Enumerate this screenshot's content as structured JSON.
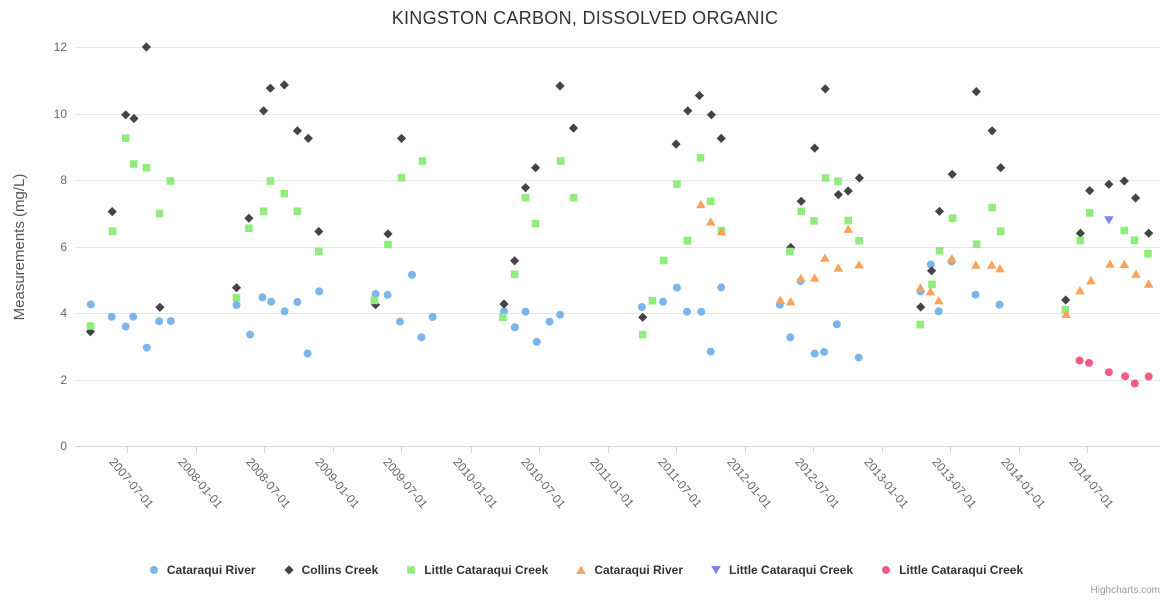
{
  "credits": {
    "label": "Highcharts.com"
  },
  "chart_data": {
    "type": "scatter",
    "title": "KINGSTON CARBON, DISSOLVED ORGANIC",
    "xlabel": "",
    "ylabel": "Measurements (mg/L)",
    "ylim": [
      0,
      12
    ],
    "y_ticks": [
      0,
      2,
      4,
      6,
      8,
      10,
      12
    ],
    "x_range": [
      "2007-02-13",
      "2015-01-10"
    ],
    "x_ticks": [
      "2007-07-01",
      "2008-01-01",
      "2008-07-01",
      "2009-01-01",
      "2009-07-01",
      "2010-01-01",
      "2010-07-01",
      "2011-01-01",
      "2011-07-01",
      "2012-01-01",
      "2012-07-01",
      "2013-01-01",
      "2013-07-01",
      "2014-01-01",
      "2014-07-01"
    ],
    "grid": true,
    "legend_position": "bottom",
    "colors": {
      "grid": "#e6e6e6",
      "axis_line": "#ccd6eb",
      "tick_label": "#666666",
      "title_text": "#333333"
    },
    "series": [
      {
        "name": "Cataraqui River",
        "marker": "circle",
        "color": "#7cb5ec",
        "points": [
          [
            "2007-03-27",
            4.26
          ],
          [
            "2007-05-22",
            3.89
          ],
          [
            "2007-06-28",
            3.59
          ],
          [
            "2007-07-18",
            3.89
          ],
          [
            "2007-08-23",
            2.96
          ],
          [
            "2007-09-25",
            3.75
          ],
          [
            "2007-10-26",
            3.76
          ],
          [
            "2008-04-18",
            4.24
          ],
          [
            "2008-05-24",
            3.35
          ],
          [
            "2008-06-26",
            4.47
          ],
          [
            "2008-07-19",
            4.34
          ],
          [
            "2008-08-24",
            4.05
          ],
          [
            "2008-09-27",
            4.33
          ],
          [
            "2008-10-24",
            2.78
          ],
          [
            "2008-11-24",
            4.65
          ],
          [
            "2009-04-23",
            4.57
          ],
          [
            "2009-05-25",
            4.55
          ],
          [
            "2009-06-27",
            3.74
          ],
          [
            "2009-07-29",
            5.15
          ],
          [
            "2009-08-23",
            3.27
          ],
          [
            "2009-09-22",
            3.88
          ],
          [
            "2010-03-31",
            4.05
          ],
          [
            "2010-04-29",
            3.57
          ],
          [
            "2010-05-27",
            4.04
          ],
          [
            "2010-06-26",
            3.13
          ],
          [
            "2010-07-30",
            3.74
          ],
          [
            "2010-08-27",
            3.95
          ],
          [
            "2011-04-02",
            4.18
          ],
          [
            "2011-05-28",
            4.34
          ],
          [
            "2011-07-04",
            4.76
          ],
          [
            "2011-07-31",
            4.04
          ],
          [
            "2011-09-07",
            4.04
          ],
          [
            "2011-10-02",
            2.84
          ],
          [
            "2011-10-30",
            4.77
          ],
          [
            "2012-04-03",
            4.25
          ],
          [
            "2012-05-01",
            3.27
          ],
          [
            "2012-05-28",
            4.96
          ],
          [
            "2012-07-05",
            2.78
          ],
          [
            "2012-07-30",
            2.83
          ],
          [
            "2012-09-02",
            3.66
          ],
          [
            "2012-10-30",
            2.66
          ],
          [
            "2013-04-13",
            4.65
          ],
          [
            "2013-05-10",
            5.46
          ],
          [
            "2013-05-31",
            4.05
          ],
          [
            "2013-07-04",
            5.55
          ],
          [
            "2013-09-06",
            4.55
          ],
          [
            "2013-11-09",
            4.25
          ]
        ]
      },
      {
        "name": "Collins Creek",
        "marker": "diamond",
        "color": "#434348",
        "points": [
          [
            "2007-03-26",
            3.44
          ],
          [
            "2007-05-23",
            7.05
          ],
          [
            "2007-06-28",
            9.96
          ],
          [
            "2007-07-20",
            9.85
          ],
          [
            "2007-08-22",
            12.0
          ],
          [
            "2007-09-27",
            4.17
          ],
          [
            "2008-04-18",
            4.76
          ],
          [
            "2008-05-21",
            6.85
          ],
          [
            "2008-06-29",
            10.08
          ],
          [
            "2008-07-17",
            10.76
          ],
          [
            "2008-08-23",
            10.86
          ],
          [
            "2008-09-27",
            9.48
          ],
          [
            "2008-10-26",
            9.25
          ],
          [
            "2008-11-23",
            6.45
          ],
          [
            "2009-04-23",
            4.25
          ],
          [
            "2009-05-26",
            6.38
          ],
          [
            "2009-07-01",
            9.25
          ],
          [
            "2010-03-31",
            4.27
          ],
          [
            "2010-04-28",
            5.57
          ],
          [
            "2010-05-27",
            7.77
          ],
          [
            "2010-06-23",
            8.37
          ],
          [
            "2010-08-27",
            10.83
          ],
          [
            "2010-10-02",
            9.56
          ],
          [
            "2011-04-04",
            3.87
          ],
          [
            "2011-07-02",
            9.08
          ],
          [
            "2011-08-02",
            10.08
          ],
          [
            "2011-09-02",
            10.54
          ],
          [
            "2011-10-04",
            9.96
          ],
          [
            "2011-10-30",
            9.25
          ],
          [
            "2012-05-02",
            5.97
          ],
          [
            "2012-05-30",
            7.36
          ],
          [
            "2012-07-05",
            8.96
          ],
          [
            "2012-08-02",
            10.74
          ],
          [
            "2012-09-06",
            7.56
          ],
          [
            "2012-10-02",
            7.67
          ],
          [
            "2012-11-01",
            8.06
          ],
          [
            "2013-04-13",
            4.18
          ],
          [
            "2013-05-12",
            5.27
          ],
          [
            "2013-06-02",
            7.06
          ],
          [
            "2013-07-06",
            8.17
          ],
          [
            "2013-09-08",
            10.66
          ],
          [
            "2013-10-20",
            9.48
          ],
          [
            "2013-11-12",
            8.37
          ],
          [
            "2014-05-04",
            4.39
          ],
          [
            "2014-06-12",
            6.4
          ],
          [
            "2014-07-07",
            7.68
          ],
          [
            "2014-08-27",
            7.87
          ],
          [
            "2014-10-07",
            7.97
          ],
          [
            "2014-11-06",
            7.46
          ],
          [
            "2014-12-11",
            6.4
          ]
        ]
      },
      {
        "name": "Little Cataraqui Creek",
        "marker": "square",
        "color": "#90ed7d",
        "points": [
          [
            "2007-03-26",
            3.61
          ],
          [
            "2007-05-24",
            6.46
          ],
          [
            "2007-06-28",
            9.26
          ],
          [
            "2007-07-19",
            8.48
          ],
          [
            "2007-08-22",
            8.37
          ],
          [
            "2007-09-26",
            6.99
          ],
          [
            "2007-10-25",
            7.97
          ],
          [
            "2008-04-18",
            4.46
          ],
          [
            "2008-05-21",
            6.55
          ],
          [
            "2008-06-29",
            7.06
          ],
          [
            "2008-07-17",
            7.97
          ],
          [
            "2008-08-23",
            7.59
          ],
          [
            "2008-09-27",
            7.06
          ],
          [
            "2008-11-23",
            5.85
          ],
          [
            "2009-04-20",
            4.38
          ],
          [
            "2009-05-26",
            6.06
          ],
          [
            "2009-07-01",
            8.07
          ],
          [
            "2009-08-26",
            8.57
          ],
          [
            "2010-03-28",
            3.87
          ],
          [
            "2010-04-28",
            5.16
          ],
          [
            "2010-05-27",
            7.47
          ],
          [
            "2010-06-23",
            6.69
          ],
          [
            "2010-08-29",
            8.57
          ],
          [
            "2010-10-02",
            7.47
          ],
          [
            "2011-04-04",
            3.35
          ],
          [
            "2011-04-30",
            4.37
          ],
          [
            "2011-05-30",
            5.58
          ],
          [
            "2011-07-04",
            7.87
          ],
          [
            "2011-08-01",
            6.17
          ],
          [
            "2011-09-05",
            8.67
          ],
          [
            "2011-10-02",
            7.36
          ],
          [
            "2011-10-31",
            6.48
          ],
          [
            "2012-04-30",
            5.85
          ],
          [
            "2012-05-30",
            7.06
          ],
          [
            "2012-07-03",
            6.77
          ],
          [
            "2012-08-03",
            8.06
          ],
          [
            "2012-09-05",
            7.96
          ],
          [
            "2012-10-02",
            6.78
          ],
          [
            "2012-10-31",
            6.17
          ],
          [
            "2013-04-12",
            3.65
          ],
          [
            "2013-05-13",
            4.86
          ],
          [
            "2013-06-02",
            5.87
          ],
          [
            "2013-07-07",
            6.85
          ],
          [
            "2013-09-09",
            6.07
          ],
          [
            "2013-10-20",
            7.17
          ],
          [
            "2013-11-12",
            6.46
          ],
          [
            "2014-05-03",
            4.1
          ],
          [
            "2014-06-12",
            6.18
          ],
          [
            "2014-07-07",
            7.01
          ],
          [
            "2014-10-07",
            6.48
          ],
          [
            "2014-11-03",
            6.19
          ],
          [
            "2014-12-09",
            5.78
          ]
        ]
      },
      {
        "name": "Cataraqui River",
        "marker": "triangle",
        "color": "#f7a35c",
        "points": [
          [
            "2011-09-06",
            7.27
          ],
          [
            "2011-10-02",
            6.75
          ],
          [
            "2011-10-31",
            6.45
          ],
          [
            "2012-04-04",
            4.39
          ],
          [
            "2012-05-02",
            4.35
          ],
          [
            "2012-05-29",
            5.05
          ],
          [
            "2012-07-05",
            5.06
          ],
          [
            "2012-08-01",
            5.66
          ],
          [
            "2012-09-06",
            5.36
          ],
          [
            "2012-10-02",
            6.53
          ],
          [
            "2012-10-31",
            5.46
          ],
          [
            "2013-04-12",
            4.76
          ],
          [
            "2013-05-09",
            4.65
          ],
          [
            "2013-05-31",
            4.38
          ],
          [
            "2013-07-05",
            5.64
          ],
          [
            "2013-09-07",
            5.45
          ],
          [
            "2013-10-19",
            5.45
          ],
          [
            "2013-11-10",
            5.34
          ],
          [
            "2014-05-05",
            3.97
          ],
          [
            "2014-06-11",
            4.68
          ],
          [
            "2014-07-10",
            4.98
          ],
          [
            "2014-08-30",
            5.48
          ],
          [
            "2014-10-07",
            5.47
          ],
          [
            "2014-11-07",
            5.18
          ],
          [
            "2014-12-11",
            4.88
          ]
        ]
      },
      {
        "name": "Little Cataraqui Creek",
        "marker": "triangle-down",
        "color": "#8085e9",
        "points": [
          [
            "2014-08-27",
            6.79
          ]
        ]
      },
      {
        "name": "Little Cataraqui Creek",
        "marker": "circle",
        "color": "#f15c80",
        "points": [
          [
            "2014-06-10",
            2.57
          ],
          [
            "2014-07-05",
            2.5
          ],
          [
            "2014-08-27",
            2.22
          ],
          [
            "2014-10-09",
            2.1
          ],
          [
            "2014-11-04",
            1.88
          ],
          [
            "2014-12-11",
            2.09
          ]
        ]
      }
    ]
  }
}
